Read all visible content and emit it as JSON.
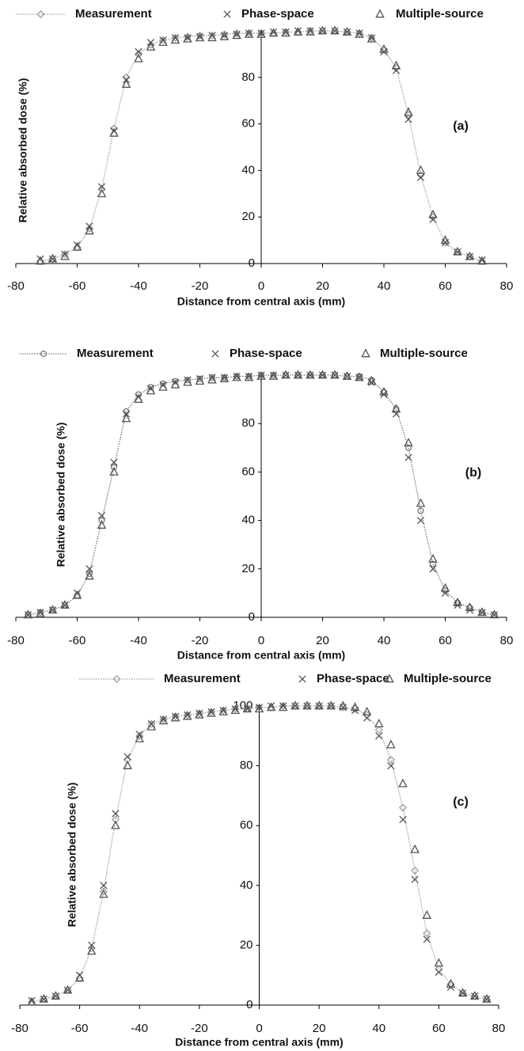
{
  "chart_data": [
    {
      "type": "line",
      "annotation": "(a)",
      "xlabel": "Distance from central axis (mm)",
      "ylabel": "Relative absorbed dose (%)",
      "xlim": [
        -80,
        80
      ],
      "xticks": [
        -80,
        -60,
        -40,
        -20,
        0,
        20,
        40,
        60,
        80
      ],
      "ylim": [
        0,
        100
      ],
      "yticks": [
        0,
        20,
        40,
        60,
        80
      ],
      "legend": "top",
      "x": [
        -72,
        -68,
        -64,
        -60,
        -56,
        -52,
        -48,
        -44,
        -40,
        -36,
        -32,
        -28,
        -24,
        -20,
        -16,
        -12,
        -8,
        -4,
        0,
        4,
        8,
        12,
        16,
        20,
        24,
        28,
        32,
        36,
        40,
        44,
        48,
        52,
        56,
        60,
        64,
        68,
        72
      ],
      "series": [
        {
          "name": "Measurement",
          "color": "#a0a0a0",
          "marker": "diamond",
          "linestyle": "dotted",
          "values": [
            1,
            2,
            4,
            7,
            15,
            32,
            58,
            80,
            90,
            94,
            96,
            97,
            97.5,
            98,
            98,
            98.5,
            99,
            99,
            99,
            99,
            99.5,
            99.5,
            100,
            100,
            100,
            99.5,
            99,
            97,
            92,
            84,
            64,
            38,
            20,
            9,
            5,
            3,
            1
          ]
        },
        {
          "name": "Phase-space",
          "color": "#555555",
          "marker": "x",
          "linestyle": "none",
          "values": [
            2,
            2,
            4,
            8,
            16,
            33,
            57,
            79,
            91,
            95,
            96,
            97,
            97,
            97.5,
            98,
            98,
            98.5,
            99,
            99,
            99.5,
            99.5,
            100,
            100,
            100,
            100,
            99.5,
            99,
            97,
            91,
            83,
            62,
            37,
            19,
            9,
            5,
            3,
            1.5
          ]
        },
        {
          "name": "Multiple-source",
          "color": "#555555",
          "marker": "triangle",
          "linestyle": "none",
          "values": [
            1,
            2,
            3,
            7,
            14,
            30,
            56,
            77,
            88,
            93,
            95,
            96,
            96.5,
            97,
            97,
            97.5,
            98,
            98.5,
            98.5,
            99,
            99,
            99.5,
            99.5,
            100,
            100,
            99.5,
            98.5,
            96.5,
            92,
            85,
            65,
            40,
            21,
            10,
            5,
            3,
            1
          ]
        }
      ]
    },
    {
      "type": "line",
      "annotation": "(b)",
      "xlabel": "Distance from central axis (mm)",
      "ylabel": "Relative absorbed dose (%)",
      "xlim": [
        -80,
        80
      ],
      "xticks": [
        -80,
        -60,
        -40,
        -20,
        0,
        20,
        40,
        60,
        80
      ],
      "ylim": [
        0,
        100
      ],
      "yticks": [
        0,
        20,
        40,
        60,
        80
      ],
      "legend": "top",
      "x": [
        -76,
        -72,
        -68,
        -64,
        -60,
        -56,
        -52,
        -48,
        -44,
        -40,
        -36,
        -32,
        -28,
        -24,
        -20,
        -16,
        -12,
        -8,
        -4,
        0,
        4,
        8,
        12,
        16,
        20,
        24,
        28,
        32,
        36,
        40,
        44,
        48,
        52,
        56,
        60,
        64,
        68,
        72,
        76
      ],
      "series": [
        {
          "name": "Measurement",
          "color": "#777777",
          "marker": "circle",
          "linestyle": "dotted",
          "values": [
            1,
            2,
            3,
            5,
            9,
            18,
            40,
            62,
            85,
            92,
            95,
            96.5,
            97.5,
            98,
            98.5,
            99,
            99,
            99.5,
            99.5,
            100,
            100,
            100,
            100,
            100,
            100,
            100,
            99.5,
            99.5,
            98,
            93,
            86,
            70,
            44,
            22,
            11,
            6,
            4,
            2,
            1
          ]
        },
        {
          "name": "Phase-space",
          "color": "#555555",
          "marker": "x",
          "linestyle": "none",
          "values": [
            1,
            2,
            3,
            5,
            10,
            20,
            42,
            64,
            84,
            91,
            94.5,
            96,
            97,
            98,
            98.5,
            99,
            99,
            99.5,
            99.5,
            100,
            100,
            100,
            100,
            100,
            100,
            100,
            99.5,
            99,
            97,
            92,
            84,
            66,
            40,
            20,
            10,
            5,
            3,
            2,
            1
          ]
        },
        {
          "name": "Multiple-source",
          "color": "#555555",
          "marker": "triangle",
          "linestyle": "none",
          "values": [
            1,
            1.5,
            3,
            5,
            9,
            17,
            38,
            60,
            82,
            90,
            93.5,
            95,
            96,
            97,
            97.5,
            98,
            98.5,
            99,
            99,
            99.5,
            99.5,
            100,
            100,
            100,
            100,
            100,
            99.5,
            99,
            97.5,
            93,
            86,
            72,
            47,
            24,
            12,
            6,
            4,
            2,
            1
          ]
        }
      ]
    },
    {
      "type": "line",
      "annotation": "(c)",
      "xlabel": "Distance from central axis (mm)",
      "ylabel": "Relative absorbed dose (%)",
      "xlim": [
        -80,
        80
      ],
      "xticks": [
        -80,
        -60,
        -40,
        -20,
        0,
        20,
        40,
        60,
        80
      ],
      "ylim": [
        0,
        100
      ],
      "yticks": [
        0,
        20,
        40,
        60,
        80,
        100
      ],
      "legend": "top",
      "x": [
        -76,
        -72,
        -68,
        -64,
        -60,
        -56,
        -52,
        -48,
        -44,
        -40,
        -36,
        -32,
        -28,
        -24,
        -20,
        -16,
        -12,
        -8,
        -4,
        0,
        4,
        8,
        12,
        16,
        20,
        24,
        28,
        32,
        36,
        40,
        44,
        48,
        52,
        56,
        60,
        64,
        68,
        72,
        76
      ],
      "series": [
        {
          "name": "Measurement",
          "color": "#a0a0a0",
          "marker": "diamond",
          "linestyle": "dotted",
          "values": [
            1,
            2,
            3,
            5,
            9,
            19,
            38,
            62,
            82,
            90,
            94,
            95.5,
            96.5,
            97,
            97.5,
            98,
            98.5,
            99,
            99,
            99.5,
            99.5,
            100,
            100,
            100,
            100,
            100,
            99.5,
            99,
            97,
            92,
            82,
            66,
            45,
            24,
            12,
            7,
            4,
            3,
            2
          ]
        },
        {
          "name": "Phase-space",
          "color": "#555555",
          "marker": "x",
          "linestyle": "none",
          "values": [
            1.5,
            2,
            3,
            5,
            10,
            20,
            40,
            64,
            83,
            90.5,
            94,
            95.5,
            96.5,
            97,
            97.5,
            98,
            98.5,
            99,
            99,
            99.5,
            100,
            100,
            100,
            100,
            100,
            100,
            99.5,
            98.5,
            96,
            90,
            80,
            62,
            42,
            22,
            11,
            6,
            4,
            3,
            2
          ]
        },
        {
          "name": "Multiple-source",
          "color": "#555555",
          "marker": "triangle",
          "linestyle": "none",
          "values": [
            1,
            2,
            3,
            5,
            9,
            18,
            37,
            60,
            80,
            89,
            93,
            95,
            96,
            96.5,
            97,
            97.5,
            98,
            98.5,
            99,
            99,
            99.5,
            99.5,
            100,
            100,
            100,
            100,
            100,
            99.5,
            98,
            94,
            87,
            74,
            52,
            30,
            14,
            7,
            4,
            3,
            2
          ]
        }
      ]
    }
  ]
}
